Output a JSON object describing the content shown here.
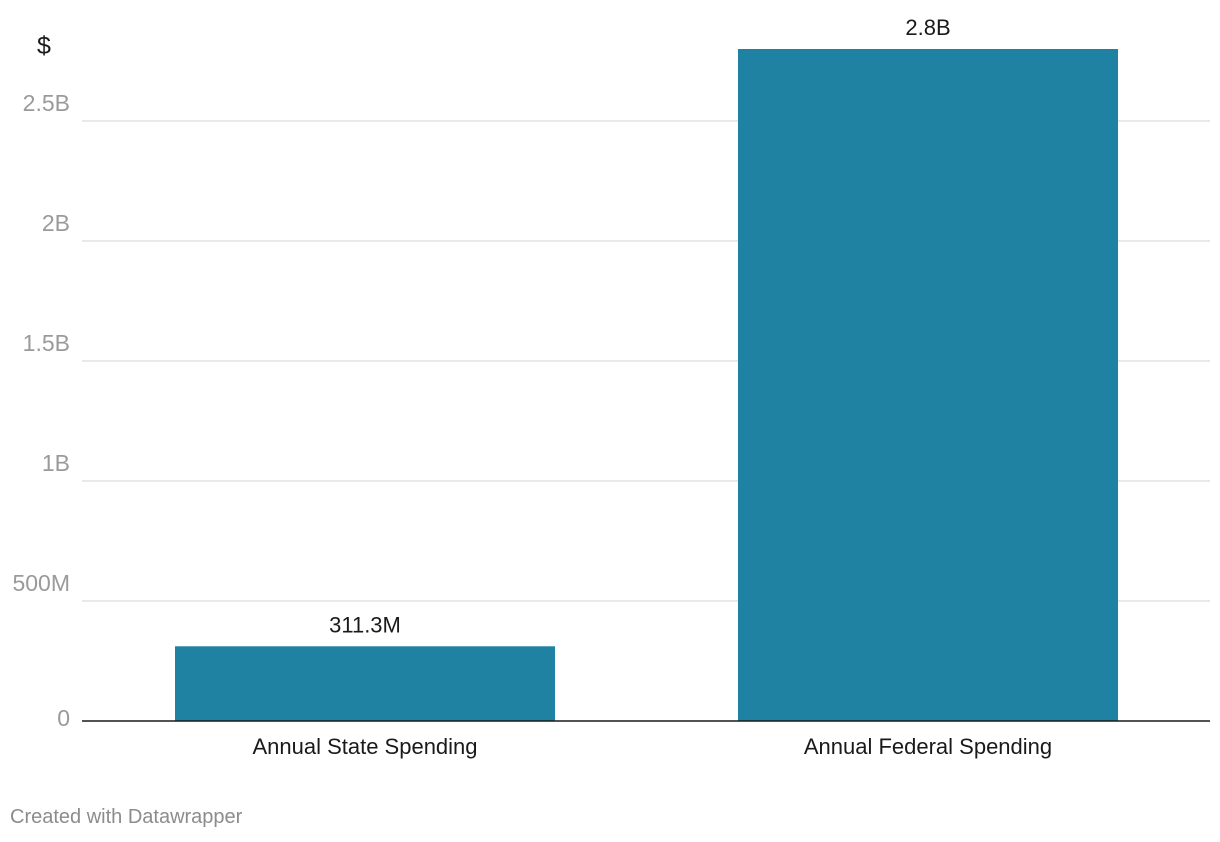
{
  "chart_data": {
    "type": "bar",
    "title": "",
    "xlabel": "",
    "ylabel": "$",
    "categories": [
      "Annual State Spending",
      "Annual Federal Spending"
    ],
    "values": [
      311300000,
      2800000000
    ],
    "data_labels": [
      "311.3M",
      "2.8B"
    ],
    "ylim": [
      0,
      2800000000
    ],
    "yticks": [
      {
        "value": 0,
        "label": "0"
      },
      {
        "value": 500000000,
        "label": "500M"
      },
      {
        "value": 1000000000,
        "label": "1B"
      },
      {
        "value": 1500000000,
        "label": "1.5B"
      },
      {
        "value": 2000000000,
        "label": "2B"
      },
      {
        "value": 2500000000,
        "label": "2.5B"
      }
    ],
    "grid": true,
    "bar_color": "#1f82a3"
  },
  "footer": {
    "credit": "Created with Datawrapper"
  }
}
